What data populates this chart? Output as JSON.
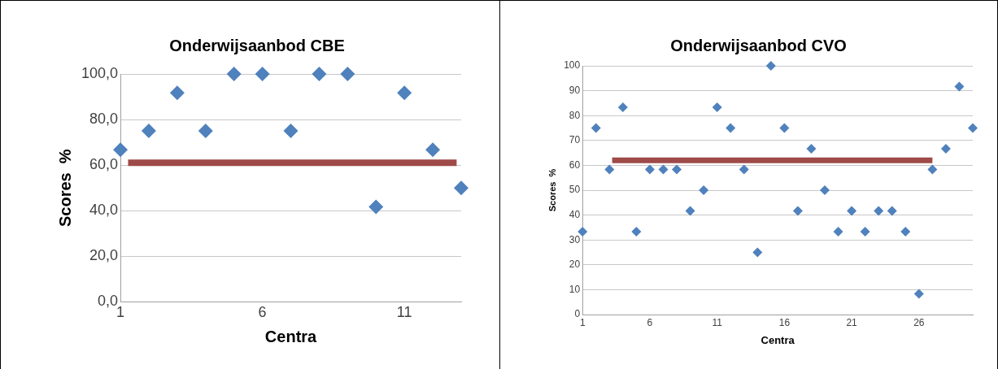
{
  "chart_data": [
    {
      "type": "scatter",
      "title": "Onderwijsaanbod CBE",
      "xlabel": "Centra",
      "ylabel": "Scores  %",
      "x": [
        1,
        2,
        3,
        4,
        5,
        6,
        7,
        8,
        9,
        10,
        11,
        12,
        13
      ],
      "xlim": [
        1,
        13
      ],
      "xticks": [
        1,
        6,
        11
      ],
      "ylim": [
        0,
        100
      ],
      "yticks": [
        {
          "value": 0,
          "label": "0,0"
        },
        {
          "value": 20,
          "label": "20,0"
        },
        {
          "value": 40,
          "label": "40,0"
        },
        {
          "value": 60,
          "label": "60,0"
        },
        {
          "value": 80,
          "label": "80,0"
        },
        {
          "value": 100,
          "label": "100,0"
        }
      ],
      "grid": "y",
      "legend": false,
      "series": [
        {
          "type": "scatter",
          "marker": "diamond",
          "color": "#4f81bd",
          "values": [
            66.7,
            75,
            91.7,
            75,
            100,
            100,
            75,
            100,
            100,
            41.7,
            91.7,
            66.7,
            50
          ]
        },
        {
          "type": "line",
          "marker": "none",
          "color": "#9e4a48",
          "x": [
            1.27,
            12.84
          ],
          "values": [
            61,
            61
          ]
        }
      ]
    },
    {
      "type": "scatter",
      "title": "Onderwijsaanbod CVO",
      "xlabel": "Centra",
      "ylabel": "Scores  %",
      "x": [
        1,
        2,
        3,
        4,
        5,
        6,
        7,
        8,
        9,
        10,
        11,
        12,
        13,
        14,
        15,
        16,
        17,
        18,
        19,
        20,
        21,
        22,
        23,
        24,
        25,
        26,
        27,
        28,
        29,
        30
      ],
      "xlim": [
        1,
        30
      ],
      "xticks": [
        1,
        6,
        11,
        16,
        21,
        26
      ],
      "ylim": [
        0,
        100
      ],
      "yticks": [
        0,
        10,
        20,
        30,
        40,
        50,
        60,
        70,
        80,
        90,
        100
      ],
      "grid": "y",
      "legend": false,
      "series": [
        {
          "type": "scatter",
          "marker": "diamond",
          "color": "#4f81bd",
          "values": [
            33.3,
            75,
            58.3,
            83.3,
            33.3,
            58.3,
            58.3,
            58.3,
            41.7,
            50,
            83.3,
            75,
            58.3,
            25,
            100,
            75,
            41.7,
            66.7,
            50,
            33.3,
            41.7,
            33.3,
            41.7,
            41.7,
            33.3,
            8.3,
            58.3,
            66.7,
            91.7,
            75
          ]
        },
        {
          "type": "line",
          "marker": "none",
          "color": "#9e4a48",
          "x": [
            3.2,
            27
          ],
          "values": [
            62,
            62
          ]
        }
      ]
    }
  ]
}
